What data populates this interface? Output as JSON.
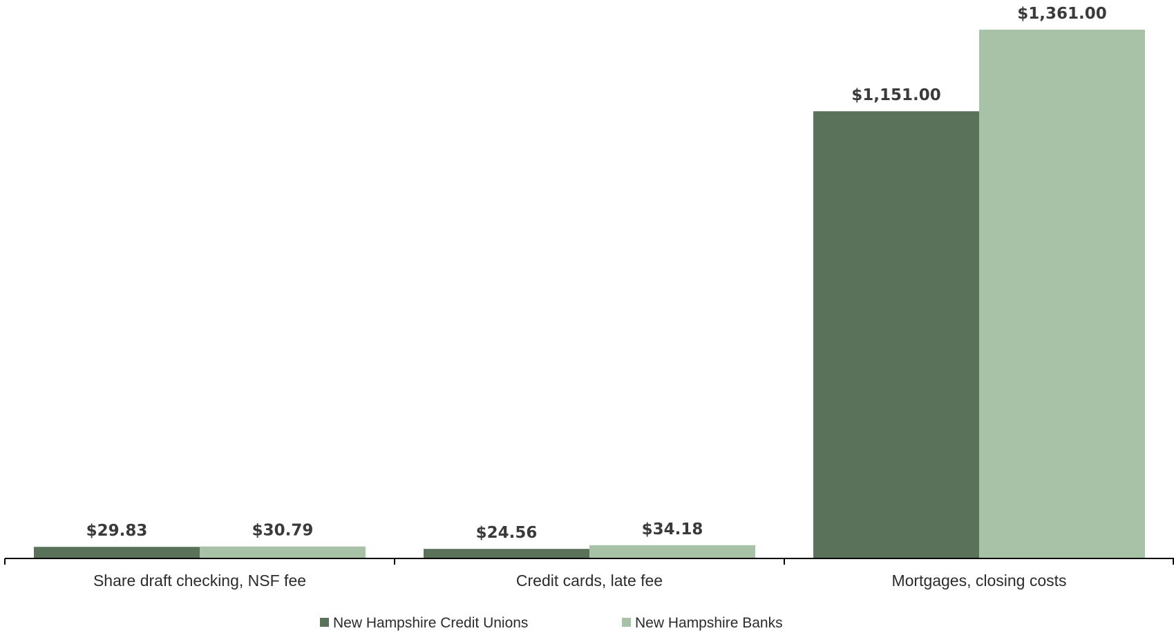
{
  "chart_data": {
    "type": "bar",
    "categories": [
      "Share draft checking, NSF fee",
      "Credit cards, late fee",
      "Mortgages, closing costs"
    ],
    "series": [
      {
        "name": "New Hampshire Credit Unions",
        "values": [
          29.83,
          24.56,
          1151.0
        ],
        "labels": [
          "$29.83",
          "$24.56",
          "$1,151.00"
        ],
        "color": "#5a7259"
      },
      {
        "name": "New Hampshire Banks",
        "values": [
          30.79,
          34.18,
          1361.0
        ],
        "labels": [
          "$30.79",
          "$34.18",
          "$1,361.00"
        ],
        "color": "#a8c2a8"
      }
    ],
    "title": "",
    "xlabel": "",
    "ylabel": "",
    "ylim": [
      0,
      1361
    ],
    "grid": false,
    "legend_position": "bottom-center"
  }
}
